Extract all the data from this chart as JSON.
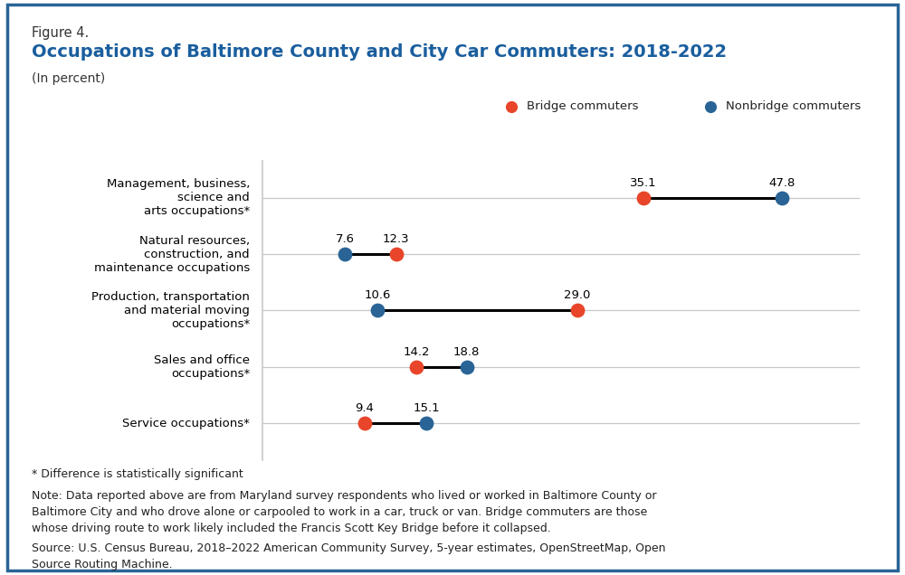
{
  "figure_label": "Figure 4.",
  "title": "Occupations of Baltimore County and City Car Commuters: 2018-2022",
  "subtitle": "(In percent)",
  "categories": [
    "Management, business,\nscience and\narts occupations*",
    "Natural resources,\nconstruction, and\nmaintenance occupations",
    "Production, transportation\nand material moving\noccupations*",
    "Sales and office\noccupations*",
    "Service occupations*"
  ],
  "bridge_values": [
    35.1,
    12.3,
    29.0,
    14.2,
    9.4
  ],
  "nonbridge_values": [
    47.8,
    7.6,
    10.6,
    18.8,
    15.1
  ],
  "bridge_color": "#E8452A",
  "nonbridge_color": "#2A6496",
  "xlim": [
    0,
    55
  ],
  "footnote1": "* Difference is statistically significant",
  "footnote2": "Note: Data reported above are from Maryland survey respondents who lived or worked in Baltimore County or\nBaltimore City and who drove alone or carpooled to work in a car, truck or van. Bridge commuters are those\nwhose driving route to work likely included the Francis Scott Key Bridge before it collapsed.",
  "footnote3": "Source: U.S. Census Bureau, 2018–2022 American Community Survey, 5-year estimates, OpenStreetMap, Open\nSource Routing Machine.",
  "background_color": "#FFFFFF",
  "border_color": "#2A6496",
  "grid_color": "#C8C8C8",
  "title_color": "#1A5E9E",
  "figure_label_color": "#333333"
}
